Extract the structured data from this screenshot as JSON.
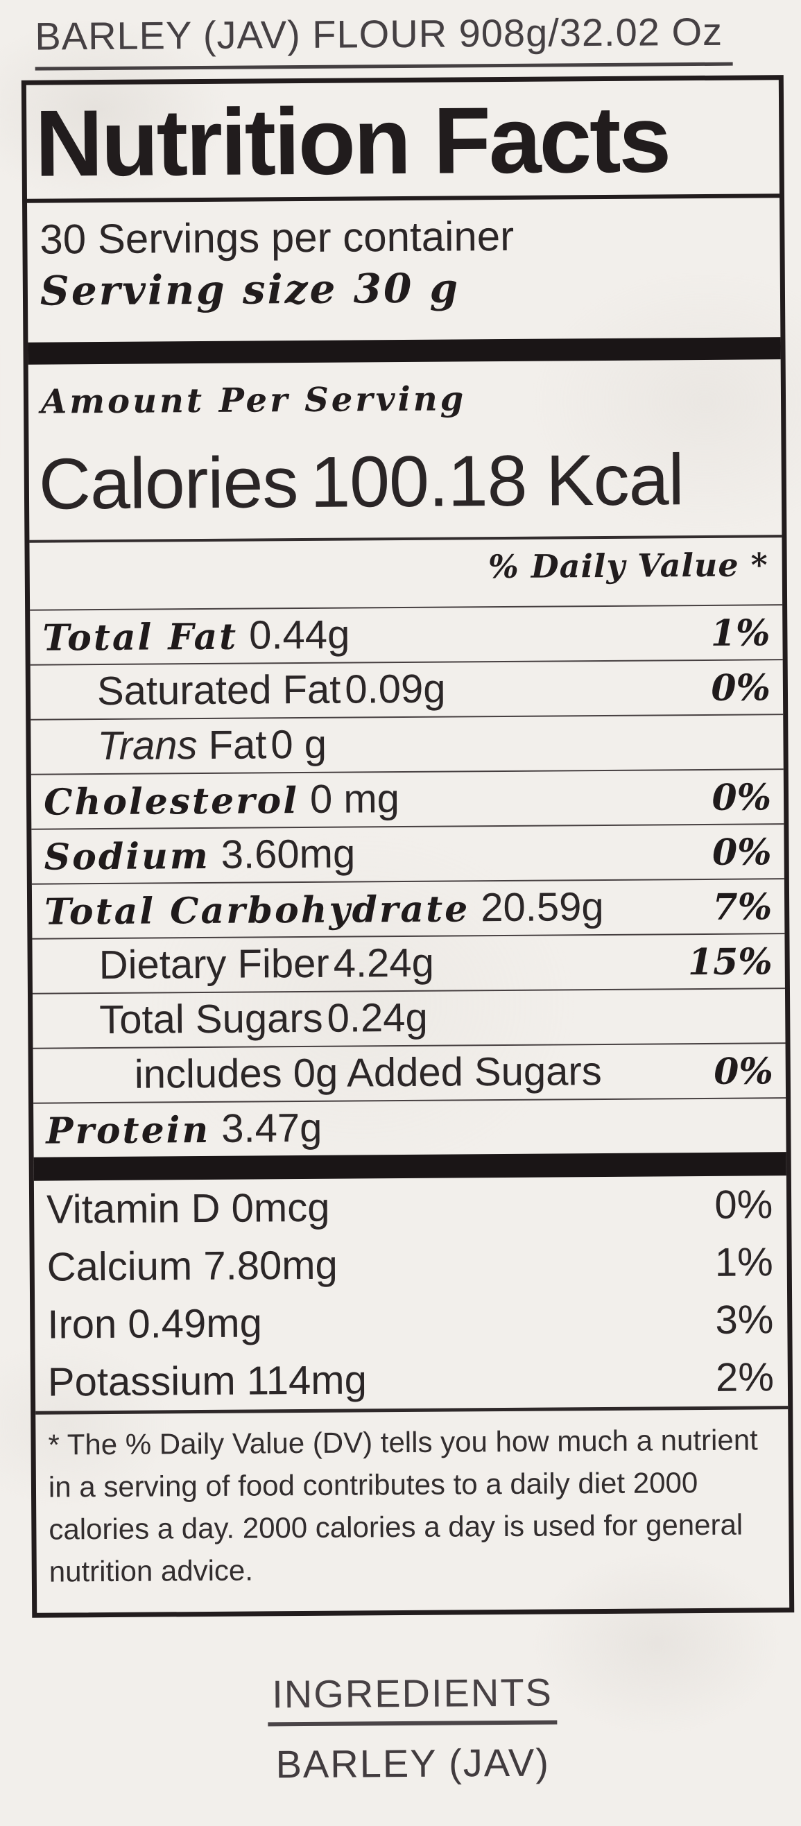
{
  "theme": {
    "ink": "#272223",
    "paper": "#f2efeb",
    "bar": "#1a1516"
  },
  "product_title": "BARLEY (JAV) FLOUR 908g/32.02 Oz",
  "label": {
    "title": "Nutrition Facts",
    "servings_per_container": "30 Servings per container",
    "serving_size_line": "Serving size 30 g",
    "amount_per_serving": "Amount Per Serving",
    "calories_label": "Calories",
    "calories_value": "100.18 Kcal",
    "daily_value_header": "% Daily Value *",
    "nutrients": [
      {
        "name": "Total Fat",
        "amount": "0.44g",
        "dv": "1%"
      },
      {
        "name": "Saturated Fat",
        "amount": "0.09g",
        "dv": "0%"
      },
      {
        "prefix": "Trans",
        "name": "Fat",
        "amount": "0 g",
        "dv": ""
      },
      {
        "name": "Cholesterol",
        "amount": "0 mg",
        "dv": "0%"
      },
      {
        "name": "Sodium",
        "amount": "3.60mg",
        "dv": "0%"
      },
      {
        "name": "Total Carbohydrate",
        "amount": "20.59g",
        "dv": "7%"
      },
      {
        "name": "Dietary Fiber",
        "amount": "4.24g",
        "dv": "15%"
      },
      {
        "name": "Total Sugars",
        "amount": "0.24g",
        "dv": ""
      },
      {
        "name": "includes 0g Added Sugars",
        "amount": "",
        "dv": "0%"
      },
      {
        "name": "Protein",
        "amount": "3.47g",
        "dv": ""
      }
    ],
    "micronutrients": [
      {
        "name": "Vitamin D 0mcg",
        "dv": "0%"
      },
      {
        "name": "Calcium 7.80mg",
        "dv": "1%"
      },
      {
        "name": "Iron 0.49mg",
        "dv": "3%"
      },
      {
        "name": "Potassium 114mg",
        "dv": "2%"
      }
    ],
    "footnote": "* The % Daily Value (DV) tells you how much a nutrient in a serving of food contributes to a daily diet 2000 calories a day. 2000 calories a day is used for general nutrition advice."
  },
  "ingredients": {
    "heading": "INGREDIENTS",
    "value": "BARLEY (JAV)"
  }
}
